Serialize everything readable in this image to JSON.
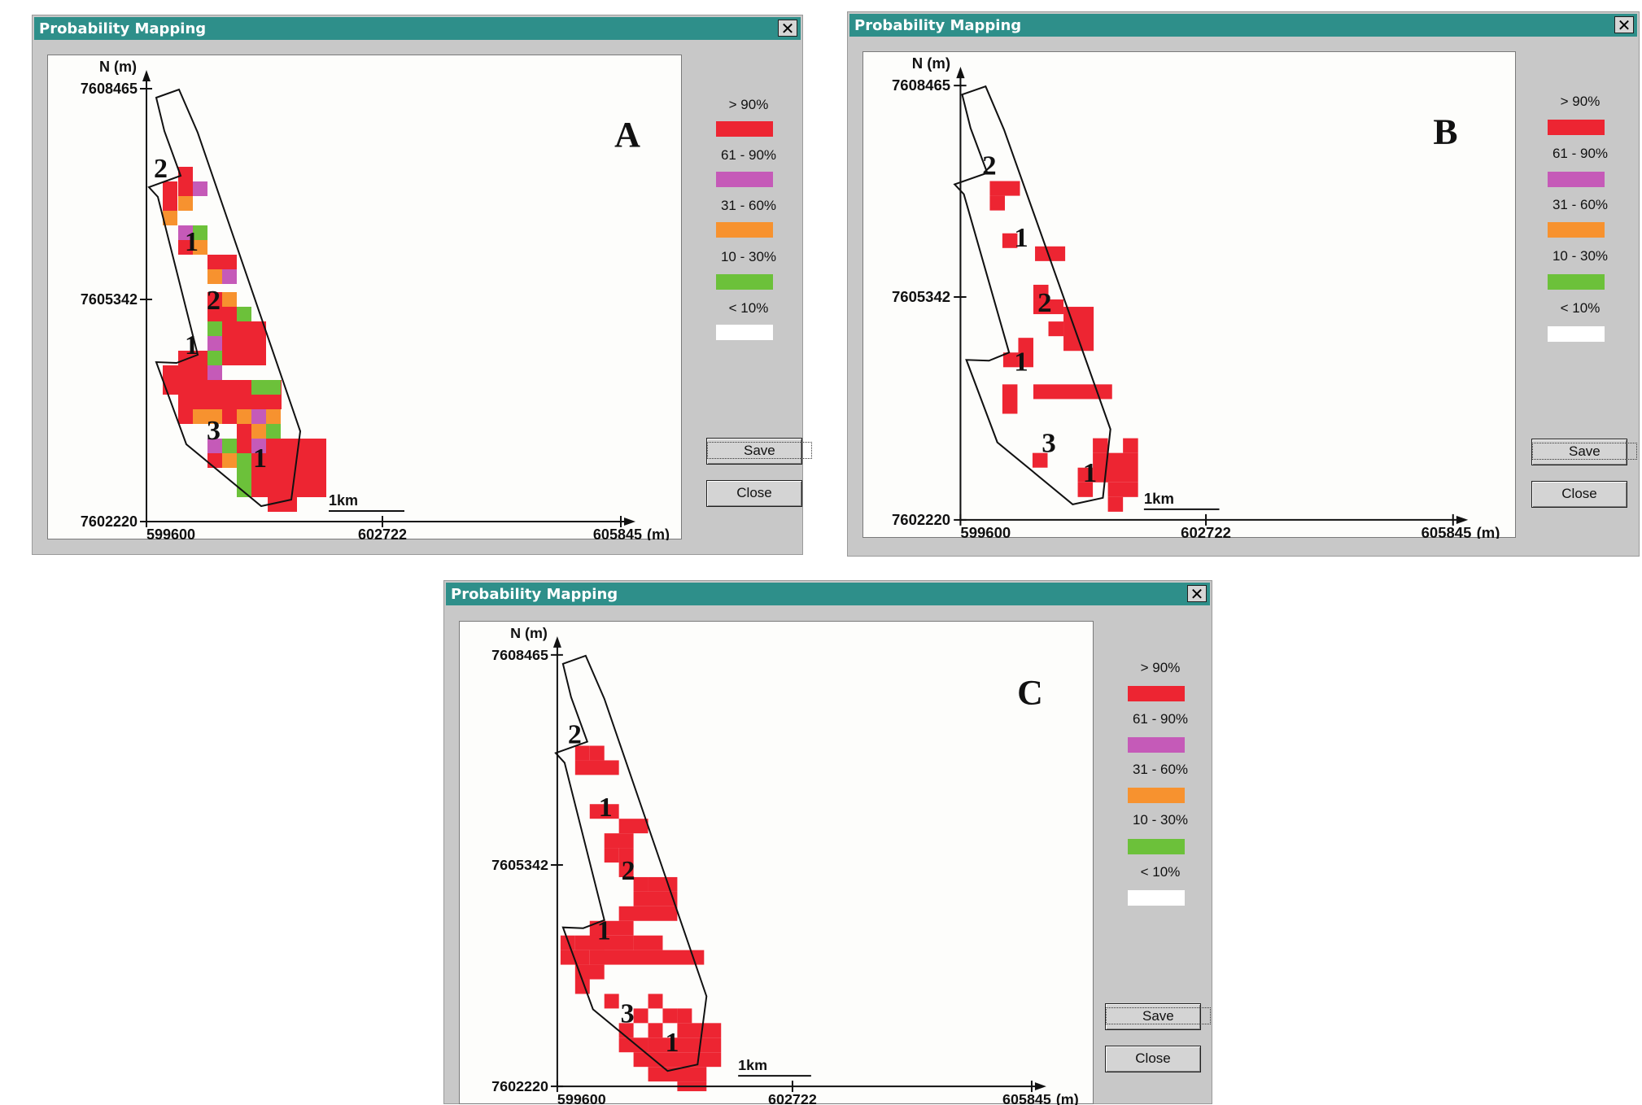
{
  "colors": {
    "titlebar": "#2e8f8a",
    "gt90": "#ed2532",
    "p61_90": "#c55ab8",
    "p31_60": "#f7922f",
    "p10_30": "#6cc13a",
    "lt10": "#ffffff"
  },
  "icons": {
    "close": "close-icon"
  },
  "windows": [
    {
      "id": "A",
      "title": "Probability Mapping",
      "close_glyph": "✕",
      "panel_label": "A",
      "y_axis_label": "N (m)",
      "x_unit": "(m)",
      "x_ticks": [
        "599600",
        "602722",
        "605845"
      ],
      "y_ticks": [
        "7608465",
        "7605342",
        "7602220"
      ],
      "scale_label": "1km",
      "legend": [
        {
          "label": "> 90%",
          "color": "#ed2532"
        },
        {
          "label": "61 - 90%",
          "color": "#c55ab8"
        },
        {
          "label": "31 - 60%",
          "color": "#f7922f"
        },
        {
          "label": "10 - 30%",
          "color": "#6cc13a"
        },
        {
          "label": "< 10%",
          "color": "#ffffff"
        }
      ],
      "zone_labels": [
        "2",
        "1",
        "2",
        "1",
        "3",
        "1"
      ],
      "save_label": "Save",
      "close_label": "Close"
    },
    {
      "id": "B",
      "title": "Probability Mapping",
      "close_glyph": "✕",
      "panel_label": "B",
      "y_axis_label": "N (m)",
      "x_unit": "(m)",
      "x_ticks": [
        "599600",
        "602722",
        "605845"
      ],
      "y_ticks": [
        "7608465",
        "7605342",
        "7602220"
      ],
      "scale_label": "1km",
      "legend": [
        {
          "label": "> 90%",
          "color": "#ed2532"
        },
        {
          "label": "61 - 90%",
          "color": "#c55ab8"
        },
        {
          "label": "31 - 60%",
          "color": "#f7922f"
        },
        {
          "label": "10 - 30%",
          "color": "#6cc13a"
        },
        {
          "label": "< 10%",
          "color": "#ffffff"
        }
      ],
      "zone_labels": [
        "2",
        "1",
        "2",
        "1",
        "3",
        "1"
      ],
      "save_label": "Save",
      "close_label": "Close"
    },
    {
      "id": "C",
      "title": "Probability Mapping",
      "close_glyph": "✕",
      "panel_label": "C",
      "y_axis_label": "N (m)",
      "x_unit": "(m)",
      "x_ticks": [
        "599600",
        "602722",
        "605845"
      ],
      "y_ticks": [
        "7608465",
        "7605342",
        "7602220"
      ],
      "scale_label": "1km",
      "legend": [
        {
          "label": "> 90%",
          "color": "#ed2532"
        },
        {
          "label": "61 - 90%",
          "color": "#c55ab8"
        },
        {
          "label": "31 - 60%",
          "color": "#f7922f"
        },
        {
          "label": "10 - 30%",
          "color": "#6cc13a"
        },
        {
          "label": "< 10%",
          "color": "#ffffff"
        }
      ],
      "zone_labels": [
        "2",
        "1",
        "2",
        "1",
        "3",
        "1"
      ],
      "save_label": "Save",
      "close_label": "Close"
    }
  ]
}
